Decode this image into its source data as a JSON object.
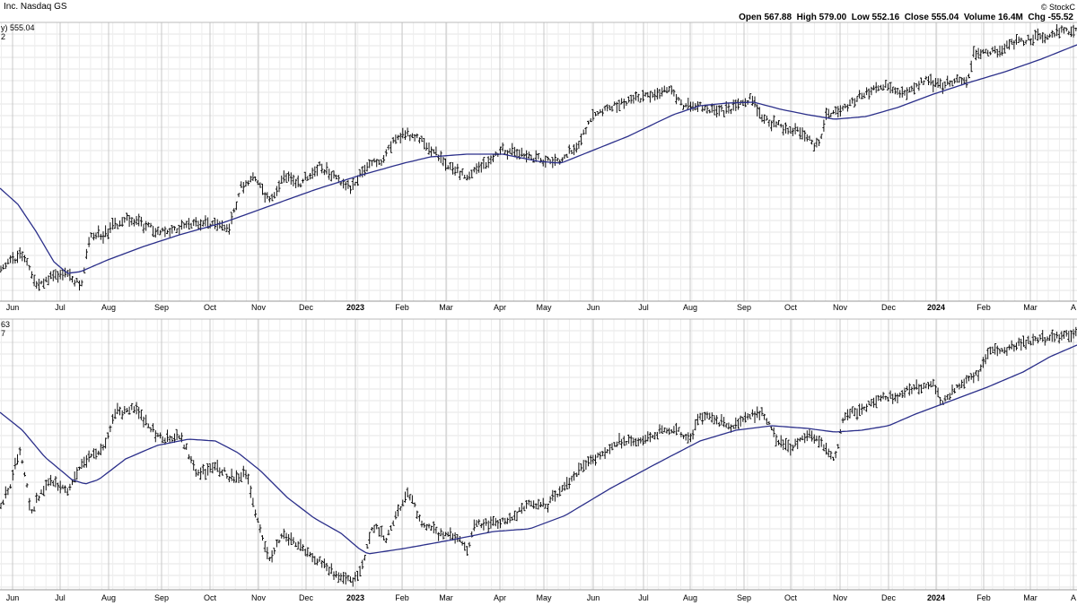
{
  "header": {
    "symbol_label": "Inc. Nasdaq GS",
    "copyright": "© StockC",
    "ohlc": [
      {
        "label": "Open",
        "value": "567.88"
      },
      {
        "label": "High",
        "value": "579.00"
      },
      {
        "label": "Low",
        "value": "552.16"
      },
      {
        "label": "Close",
        "value": "555.04"
      },
      {
        "label": "Volume",
        "value": "16.4M"
      },
      {
        "label": "Chg",
        "value": "-55.52"
      }
    ]
  },
  "chart_data": [
    {
      "type": "ohlc",
      "panel": "top",
      "legend": [
        {
          "text": "y) 555.04"
        },
        {
          "text": "2"
        }
      ],
      "x_tick_labels": [
        "Jun",
        "Jul",
        "Aug",
        "Sep",
        "Oct",
        "Nov",
        "Dec",
        "2023",
        "Feb",
        "Mar",
        "Apr",
        "May",
        "Jun",
        "Jul",
        "Aug",
        "Sep",
        "Oct",
        "Nov",
        "Dec",
        "2024",
        "Feb",
        "Mar",
        "A"
      ],
      "bold_tick_labels": [
        "2023",
        "2024"
      ],
      "price_trend": [
        [
          0,
          300
        ],
        [
          15,
          290
        ],
        [
          25,
          282
        ],
        [
          40,
          318
        ],
        [
          55,
          310
        ],
        [
          75,
          305
        ],
        [
          90,
          318
        ],
        [
          100,
          265
        ],
        [
          120,
          258
        ],
        [
          140,
          242
        ],
        [
          155,
          250
        ],
        [
          175,
          258
        ],
        [
          200,
          255
        ],
        [
          215,
          248
        ],
        [
          240,
          250
        ],
        [
          255,
          255
        ],
        [
          268,
          210
        ],
        [
          285,
          198
        ],
        [
          300,
          225
        ],
        [
          318,
          195
        ],
        [
          335,
          205
        ],
        [
          355,
          185
        ],
        [
          375,
          200
        ],
        [
          390,
          210
        ],
        [
          410,
          185
        ],
        [
          425,
          178
        ],
        [
          440,
          155
        ],
        [
          460,
          150
        ],
        [
          480,
          165
        ],
        [
          500,
          185
        ],
        [
          520,
          198
        ],
        [
          545,
          178
        ],
        [
          560,
          168
        ],
        [
          580,
          172
        ],
        [
          600,
          178
        ],
        [
          620,
          180
        ],
        [
          640,
          168
        ],
        [
          660,
          132
        ],
        [
          680,
          120
        ],
        [
          700,
          112
        ],
        [
          720,
          108
        ],
        [
          748,
          98
        ],
        [
          760,
          118
        ],
        [
          780,
          118
        ],
        [
          800,
          125
        ],
        [
          815,
          122
        ],
        [
          835,
          110
        ],
        [
          850,
          132
        ],
        [
          870,
          140
        ],
        [
          890,
          145
        ],
        [
          912,
          165
        ],
        [
          920,
          130
        ],
        [
          945,
          118
        ],
        [
          970,
          100
        ],
        [
          990,
          95
        ],
        [
          1005,
          105
        ],
        [
          1030,
          88
        ],
        [
          1050,
          95
        ],
        [
          1080,
          88
        ],
        [
          1085,
          60
        ],
        [
          1110,
          58
        ],
        [
          1130,
          48
        ],
        [
          1160,
          40
        ],
        [
          1185,
          34
        ],
        [
          1200,
          36
        ]
      ],
      "moving_average": [
        [
          0,
          210
        ],
        [
          20,
          228
        ],
        [
          40,
          258
        ],
        [
          60,
          292
        ],
        [
          75,
          305
        ],
        [
          90,
          303
        ],
        [
          120,
          290
        ],
        [
          160,
          275
        ],
        [
          200,
          262
        ],
        [
          250,
          248
        ],
        [
          300,
          230
        ],
        [
          350,
          212
        ],
        [
          400,
          196
        ],
        [
          450,
          182
        ],
        [
          480,
          175
        ],
        [
          520,
          172
        ],
        [
          560,
          172
        ],
        [
          600,
          180
        ],
        [
          625,
          182
        ],
        [
          650,
          172
        ],
        [
          700,
          152
        ],
        [
          750,
          128
        ],
        [
          780,
          118
        ],
        [
          810,
          115
        ],
        [
          840,
          114
        ],
        [
          870,
          122
        ],
        [
          900,
          128
        ],
        [
          930,
          133
        ],
        [
          965,
          130
        ],
        [
          1000,
          120
        ],
        [
          1040,
          105
        ],
        [
          1080,
          92
        ],
        [
          1120,
          80
        ],
        [
          1160,
          66
        ],
        [
          1200,
          50
        ]
      ]
    },
    {
      "type": "ohlc",
      "panel": "bottom",
      "legend": [
        {
          "text": "63"
        },
        {
          "text": "7"
        }
      ],
      "x_tick_labels": [
        "Jun",
        "Jul",
        "Aug",
        "Sep",
        "Oct",
        "Nov",
        "Dec",
        "2023",
        "Feb",
        "Mar",
        "Apr",
        "May",
        "Jun",
        "Jul",
        "Aug",
        "Sep",
        "Oct",
        "Nov",
        "Dec",
        "2024",
        "Feb",
        "Mar",
        "A"
      ],
      "bold_tick_labels": [
        "2023",
        "2024"
      ],
      "price_trend": [
        [
          0,
          570
        ],
        [
          10,
          545
        ],
        [
          22,
          500
        ],
        [
          35,
          570
        ],
        [
          55,
          535
        ],
        [
          75,
          545
        ],
        [
          90,
          520
        ],
        [
          100,
          510
        ],
        [
          115,
          500
        ],
        [
          130,
          460
        ],
        [
          150,
          455
        ],
        [
          165,
          475
        ],
        [
          185,
          492
        ],
        [
          200,
          485
        ],
        [
          220,
          530
        ],
        [
          240,
          520
        ],
        [
          260,
          535
        ],
        [
          275,
          528
        ],
        [
          285,
          575
        ],
        [
          300,
          625
        ],
        [
          315,
          595
        ],
        [
          335,
          610
        ],
        [
          355,
          625
        ],
        [
          375,
          640
        ],
        [
          395,
          648
        ],
        [
          405,
          625
        ],
        [
          415,
          585
        ],
        [
          430,
          600
        ],
        [
          440,
          580
        ],
        [
          455,
          550
        ],
        [
          470,
          582
        ],
        [
          490,
          595
        ],
        [
          510,
          600
        ],
        [
          520,
          612
        ],
        [
          530,
          585
        ],
        [
          550,
          585
        ],
        [
          570,
          578
        ],
        [
          590,
          562
        ],
        [
          610,
          565
        ],
        [
          630,
          540
        ],
        [
          650,
          520
        ],
        [
          670,
          505
        ],
        [
          690,
          495
        ],
        [
          710,
          490
        ],
        [
          730,
          485
        ],
        [
          750,
          478
        ],
        [
          770,
          490
        ],
        [
          780,
          462
        ],
        [
          800,
          470
        ],
        [
          815,
          478
        ],
        [
          835,
          465
        ],
        [
          850,
          460
        ],
        [
          865,
          490
        ],
        [
          880,
          500
        ],
        [
          900,
          485
        ],
        [
          915,
          495
        ],
        [
          930,
          515
        ],
        [
          940,
          465
        ],
        [
          960,
          455
        ],
        [
          980,
          445
        ],
        [
          1000,
          440
        ],
        [
          1020,
          432
        ],
        [
          1040,
          428
        ],
        [
          1050,
          450
        ],
        [
          1070,
          430
        ],
        [
          1090,
          418
        ],
        [
          1100,
          395
        ],
        [
          1115,
          390
        ],
        [
          1140,
          382
        ],
        [
          1160,
          378
        ],
        [
          1180,
          375
        ],
        [
          1200,
          372
        ]
      ],
      "moving_average": [
        [
          0,
          460
        ],
        [
          25,
          480
        ],
        [
          50,
          510
        ],
        [
          80,
          535
        ],
        [
          95,
          540
        ],
        [
          110,
          535
        ],
        [
          140,
          512
        ],
        [
          175,
          497
        ],
        [
          210,
          490
        ],
        [
          240,
          492
        ],
        [
          265,
          505
        ],
        [
          290,
          525
        ],
        [
          320,
          555
        ],
        [
          350,
          578
        ],
        [
          380,
          595
        ],
        [
          400,
          612
        ],
        [
          410,
          618
        ],
        [
          450,
          612
        ],
        [
          500,
          603
        ],
        [
          550,
          593
        ],
        [
          590,
          590
        ],
        [
          630,
          575
        ],
        [
          680,
          545
        ],
        [
          730,
          518
        ],
        [
          780,
          492
        ],
        [
          820,
          480
        ],
        [
          860,
          475
        ],
        [
          900,
          478
        ],
        [
          930,
          482
        ],
        [
          960,
          480
        ],
        [
          990,
          475
        ],
        [
          1020,
          462
        ],
        [
          1060,
          447
        ],
        [
          1100,
          432
        ],
        [
          1140,
          415
        ],
        [
          1170,
          398
        ],
        [
          1200,
          385
        ]
      ]
    }
  ]
}
